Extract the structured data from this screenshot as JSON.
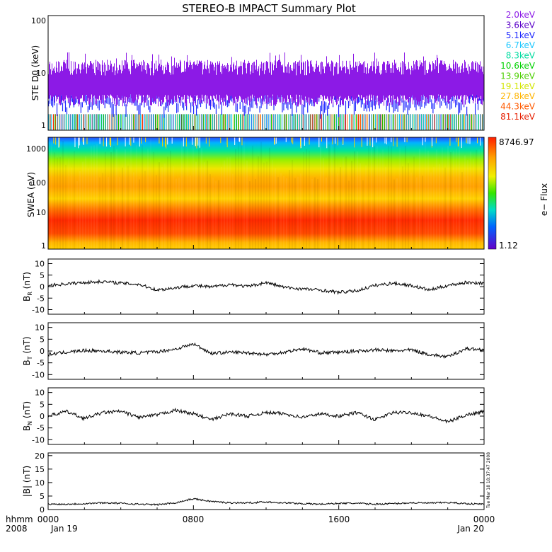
{
  "title": "STEREO-B IMPACT Summary Plot",
  "colors": {
    "channels": [
      "#8c1ae6",
      "#5a00c8",
      "#1e28ff",
      "#1ec8ff",
      "#00dca0",
      "#00d200",
      "#4ccf00",
      "#d2e600",
      "#ffb400",
      "#ff5a00",
      "#e61e00"
    ],
    "panel_line": "#000000"
  },
  "chart_data": [
    {
      "type": "line",
      "panel": "ste",
      "ylabel": "STE D0 (keV)",
      "ylim": [
        1,
        100
      ],
      "scale": "log",
      "yticks": [
        "100",
        "10",
        "1"
      ],
      "legend": [
        "2.0keV",
        "3.6keV",
        "5.1keV",
        "6.7keV",
        "8.3keV",
        "10.6keV",
        "13.9keV",
        "19.1keV",
        "27.8keV",
        "44.3keV",
        "81.1keV"
      ],
      "legend_placement": "right"
    },
    {
      "type": "heatmap",
      "panel": "swea",
      "ylabel": "SWEA (eV)",
      "ylim": [
        1,
        1500
      ],
      "scale": "log",
      "yticks": [
        "1000",
        "100",
        "10",
        "1"
      ],
      "colorbar": {
        "label": "e− Flux",
        "max": "8746.97",
        "min": "1.12"
      }
    },
    {
      "type": "line",
      "panel": "br",
      "ylabel": "B_R (nT)",
      "ylim": [
        -12,
        12
      ],
      "yticks": [
        "10",
        "5",
        "0",
        "-5",
        "-10"
      ],
      "x": [
        0,
        1,
        2,
        3,
        4,
        5,
        6,
        7,
        8,
        9,
        10,
        11,
        12,
        13,
        14,
        15,
        16,
        17,
        18,
        19,
        20,
        21,
        22,
        23,
        24
      ],
      "y": [
        0.5,
        1.2,
        1.8,
        2.2,
        1.5,
        1.0,
        -1.5,
        -0.5,
        0.5,
        -0.2,
        1.0,
        0.0,
        1.8,
        -0.3,
        -1.0,
        -1.5,
        -2.5,
        -1.8,
        0.5,
        1.5,
        0.5,
        -1.5,
        0.5,
        1.8,
        1.5
      ]
    },
    {
      "type": "line",
      "panel": "bt",
      "ylabel": "B_T (nT)",
      "ylim": [
        -12,
        12
      ],
      "yticks": [
        "10",
        "5",
        "0",
        "-5",
        "-10"
      ],
      "x": [
        0,
        1,
        2,
        3,
        4,
        5,
        6,
        7,
        8,
        9,
        10,
        11,
        12,
        13,
        14,
        15,
        16,
        17,
        18,
        19,
        20,
        21,
        22,
        23,
        24
      ],
      "y": [
        -1.5,
        -0.5,
        0.2,
        0.0,
        -0.5,
        -0.8,
        -0.3,
        0.8,
        3.0,
        -1.0,
        -0.5,
        -0.7,
        -1.5,
        -0.5,
        1.0,
        -0.8,
        -0.5,
        0.0,
        0.5,
        0.0,
        0.5,
        -1.5,
        -2.5,
        1.0,
        0.5
      ]
    },
    {
      "type": "line",
      "panel": "bn",
      "ylabel": "B_N (nT)",
      "ylim": [
        -12,
        12
      ],
      "yticks": [
        "10",
        "5",
        "0",
        "-5",
        "-10"
      ],
      "x": [
        0,
        1,
        2,
        3,
        4,
        5,
        6,
        7,
        8,
        9,
        10,
        11,
        12,
        13,
        14,
        15,
        16,
        17,
        18,
        19,
        20,
        21,
        22,
        23,
        24
      ],
      "y": [
        0.0,
        2.0,
        -1.0,
        1.5,
        2.0,
        -0.5,
        0.5,
        2.5,
        1.0,
        -1.5,
        1.0,
        0.0,
        1.5,
        1.0,
        -0.5,
        1.0,
        0.0,
        1.5,
        -1.5,
        1.5,
        1.5,
        0.0,
        -2.5,
        0.5,
        2.0
      ]
    },
    {
      "type": "line",
      "panel": "bmag",
      "ylabel": "|B| (nT)",
      "ylim": [
        0,
        21
      ],
      "yticks": [
        "20",
        "15",
        "10",
        "5",
        "0"
      ],
      "x": [
        0,
        1,
        2,
        3,
        4,
        5,
        6,
        7,
        8,
        9,
        10,
        11,
        12,
        13,
        14,
        15,
        16,
        17,
        18,
        19,
        20,
        21,
        22,
        23,
        24
      ],
      "y": [
        2.0,
        2.0,
        2.2,
        2.5,
        2.3,
        2.0,
        1.8,
        2.5,
        4.0,
        3.0,
        2.5,
        2.5,
        2.8,
        2.5,
        2.2,
        2.0,
        2.3,
        2.3,
        2.0,
        2.2,
        2.5,
        2.4,
        2.6,
        2.2,
        2.0
      ]
    }
  ],
  "xaxis": {
    "left_labels": [
      "hhmm",
      "2008"
    ],
    "ticks": [
      "0000",
      "0800",
      "1600",
      "0000"
    ],
    "dates": [
      "Jan 19",
      "Jan 20"
    ]
  },
  "timestamp": "Tue Mar 18 18:37:47 2008"
}
